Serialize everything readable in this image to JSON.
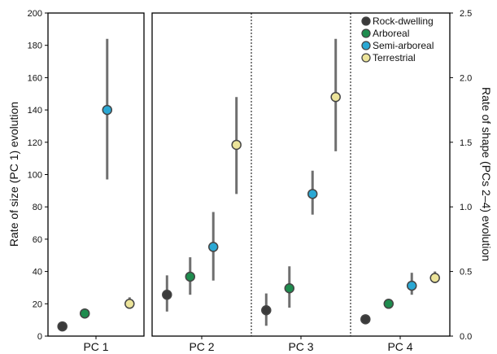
{
  "chart_data": {
    "type": "scatter",
    "subtype": "point-with-error-bars",
    "categories": [
      "PC 1",
      "PC 2",
      "PC 3",
      "PC 4"
    ],
    "left_axis": {
      "label": "Rate of size (PC 1) evolution",
      "range": [
        0,
        200
      ],
      "ticks": [
        0,
        20,
        40,
        60,
        80,
        100,
        120,
        140,
        160,
        180,
        200
      ],
      "applies_to": [
        "PC 1"
      ]
    },
    "right_axis": {
      "label": "Rate of shape (PCs 2–4) evolution",
      "range": [
        0,
        2.5
      ],
      "ticks": [
        "0.0",
        "0.5",
        "1.0",
        "1.5",
        "2.0",
        "2.5"
      ],
      "applies_to": [
        "PC 2",
        "PC 3",
        "PC 4"
      ]
    },
    "legend_position": "top-right",
    "grid": false,
    "series": [
      {
        "name": "Rock-dwelling",
        "color": "#3a3a3a",
        "points": [
          {
            "category": "PC 1",
            "axis": "left",
            "value": 6,
            "low": 4,
            "high": 8
          },
          {
            "category": "PC 2",
            "axis": "right",
            "value": 0.32,
            "low": 0.19,
            "high": 0.47
          },
          {
            "category": "PC 3",
            "axis": "right",
            "value": 0.2,
            "low": 0.08,
            "high": 0.33
          },
          {
            "category": "PC 4",
            "axis": "right",
            "value": 0.13,
            "low": 0.11,
            "high": 0.15
          }
        ]
      },
      {
        "name": "Arboreal",
        "color": "#1e8c4e",
        "points": [
          {
            "category": "PC 1",
            "axis": "left",
            "value": 14,
            "low": 11,
            "high": 17
          },
          {
            "category": "PC 2",
            "axis": "right",
            "value": 0.46,
            "low": 0.32,
            "high": 0.61
          },
          {
            "category": "PC 3",
            "axis": "right",
            "value": 0.37,
            "low": 0.22,
            "high": 0.54
          },
          {
            "category": "PC 4",
            "axis": "right",
            "value": 0.25,
            "low": 0.23,
            "high": 0.28
          }
        ]
      },
      {
        "name": "Semi-arboreal",
        "color": "#2aa8d4",
        "points": [
          {
            "category": "PC 1",
            "axis": "left",
            "value": 140,
            "low": 97,
            "high": 184
          },
          {
            "category": "PC 2",
            "axis": "right",
            "value": 0.69,
            "low": 0.43,
            "high": 0.96
          },
          {
            "category": "PC 3",
            "axis": "right",
            "value": 1.1,
            "low": 0.94,
            "high": 1.28
          },
          {
            "category": "PC 4",
            "axis": "right",
            "value": 0.39,
            "low": 0.32,
            "high": 0.49
          }
        ]
      },
      {
        "name": "Terrestrial",
        "color": "#ece49a",
        "points": [
          {
            "category": "PC 1",
            "axis": "left",
            "value": 20,
            "low": 17,
            "high": 24
          },
          {
            "category": "PC 2",
            "axis": "right",
            "value": 1.48,
            "low": 1.1,
            "high": 1.85
          },
          {
            "category": "PC 3",
            "axis": "right",
            "value": 1.85,
            "low": 1.43,
            "high": 2.3
          },
          {
            "category": "PC 4",
            "axis": "right",
            "value": 0.45,
            "low": 0.41,
            "high": 0.5
          }
        ]
      }
    ]
  }
}
